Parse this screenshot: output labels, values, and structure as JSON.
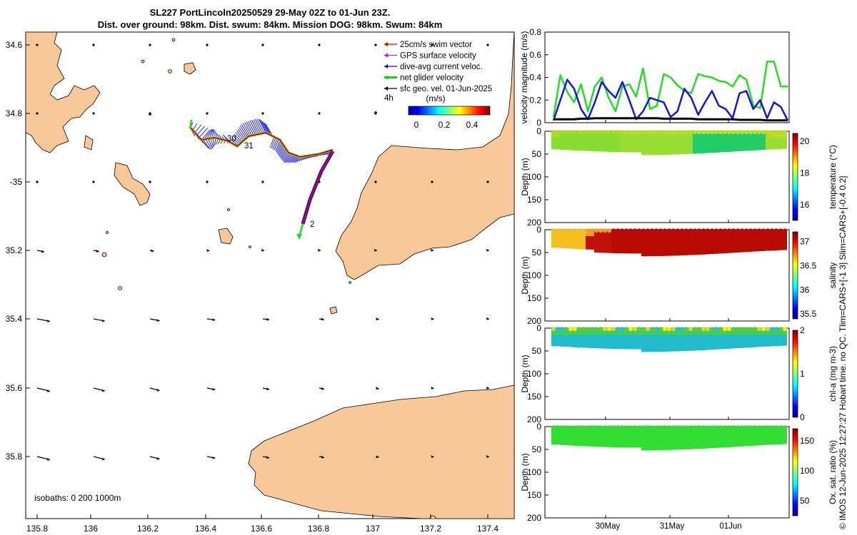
{
  "title": {
    "line1": "SL227 PortLincoln20250529 29-May 02Z to 01-Jun 23Z.",
    "line2": "Dist. over ground: 98km. Dist. swum: 84km. Mission DOG: 98km. Swum: 84km"
  },
  "map": {
    "lon_ticks": [
      "135.8",
      "136",
      "136.2",
      "136.4",
      "136.6",
      "136.8",
      "137",
      "137.2",
      "137.4"
    ],
    "lat_ticks": [
      "34.6",
      "34.8",
      "-35",
      "35.2",
      "35.4",
      "35.6",
      "35.8"
    ],
    "legend": [
      {
        "label": "25cm/s swim vector",
        "color": "#e00000"
      },
      {
        "label": "GPS surface velocity",
        "color": "#e000e0"
      },
      {
        "label": "dive-avg current veloc.",
        "color": "#0000e0"
      },
      {
        "label": "net glider velocity",
        "color": "#00dd00"
      },
      {
        "label": "sfc geo. vel. 01-Jun-2025",
        "color": "#000000"
      }
    ],
    "legend_extra": "4h",
    "colorbar_unit": "(m/s)",
    "colorbar_ticks": [
      "0",
      "0.2",
      "0.4"
    ],
    "day_labels": [
      "30",
      "31",
      "2"
    ],
    "isobaths": "isobaths: 0   200  1000m",
    "land_color": "#f8c898"
  },
  "chart_data": [
    {
      "type": "line",
      "ylabel": "velocity magnitude (m/s)",
      "yticks": [
        "0",
        "0.2",
        "0.4",
        "0.6",
        "0.8"
      ],
      "ylim": [
        0,
        0.8
      ],
      "series": [
        {
          "name": "net glider velocity",
          "color": "#22dd22",
          "values": [
            0.05,
            0.42,
            0.27,
            0.18,
            0.34,
            0.1,
            0.32,
            0.4,
            0.22,
            0.1,
            0.32,
            0.34,
            0.23,
            0.48,
            0.12,
            0.15,
            0.43,
            0.4,
            0.33,
            0.28,
            0.26,
            0.43,
            0.41,
            0.4,
            0.37,
            0.36,
            0.32,
            0.42,
            0.38,
            0.15,
            0.13,
            0.54,
            0.54,
            0.32,
            0.32
          ]
        },
        {
          "name": "dive-avg current veloc.",
          "color": "#1515dd",
          "values": [
            0.02,
            0.2,
            0.38,
            0.3,
            0.12,
            0.03,
            0.18,
            0.36,
            0.28,
            0.22,
            0.36,
            0.2,
            0.03,
            0.1,
            0.22,
            0.2,
            0.18,
            0.05,
            0.1,
            0.3,
            0.22,
            0.07,
            0.18,
            0.28,
            0.15,
            0.12,
            0.04,
            0.26,
            0.28,
            0.12,
            0.2,
            0.04,
            0.18,
            0.14,
            0.02
          ]
        },
        {
          "name": "sfc geo. vel.",
          "color": "#000000",
          "values": [
            0.03,
            0.03,
            0.03,
            0.03,
            0.035,
            0.035,
            0.04,
            0.04,
            0.04,
            0.04,
            0.04,
            0.04,
            0.04,
            0.04,
            0.04,
            0.04,
            0.035,
            0.035,
            0.035,
            0.035,
            0.035,
            0.03,
            0.03,
            0.03,
            0.03,
            0.03,
            0.03,
            0.025,
            0.025,
            0.025,
            0.025,
            0.02,
            0.02,
            0.02,
            0.02
          ]
        }
      ]
    },
    {
      "type": "heatmap",
      "ylabel": "Depth (m)",
      "yticks": [
        "0",
        "50",
        "100",
        "150",
        "200"
      ],
      "cbar_label": "temperature (°C)",
      "cbar_ticks": [
        "16",
        "18",
        "20"
      ]
    },
    {
      "type": "heatmap",
      "ylabel": "Depth (m)",
      "yticks": [
        "0",
        "50",
        "100",
        "150",
        "200"
      ],
      "cbar_label": "salinity",
      "cbar_ticks": [
        "35.5",
        "36",
        "36.5",
        "37"
      ]
    },
    {
      "type": "heatmap",
      "ylabel": "Depth (m)",
      "yticks": [
        "0",
        "50",
        "100",
        "150",
        "200"
      ],
      "cbar_label": "chl-a (mg m-3)",
      "cbar_ticks": [
        "0",
        "1",
        "2"
      ]
    },
    {
      "type": "heatmap",
      "ylabel": "Depth (m)",
      "yticks": [
        "0",
        "50",
        "100",
        "150",
        "200"
      ],
      "cbar_label": "Ox. sat. ratio (%)",
      "cbar_ticks": [
        "50",
        "100",
        "150"
      ],
      "xticks": [
        "30May",
        "31May",
        "01Jun"
      ]
    }
  ],
  "side_note": "© IMOS 12-Jun-2025 12:27:27 Hobart time. no QC. Tlim=CARS+[-1 3] Slim=CARS+[-0.4 0.2]"
}
